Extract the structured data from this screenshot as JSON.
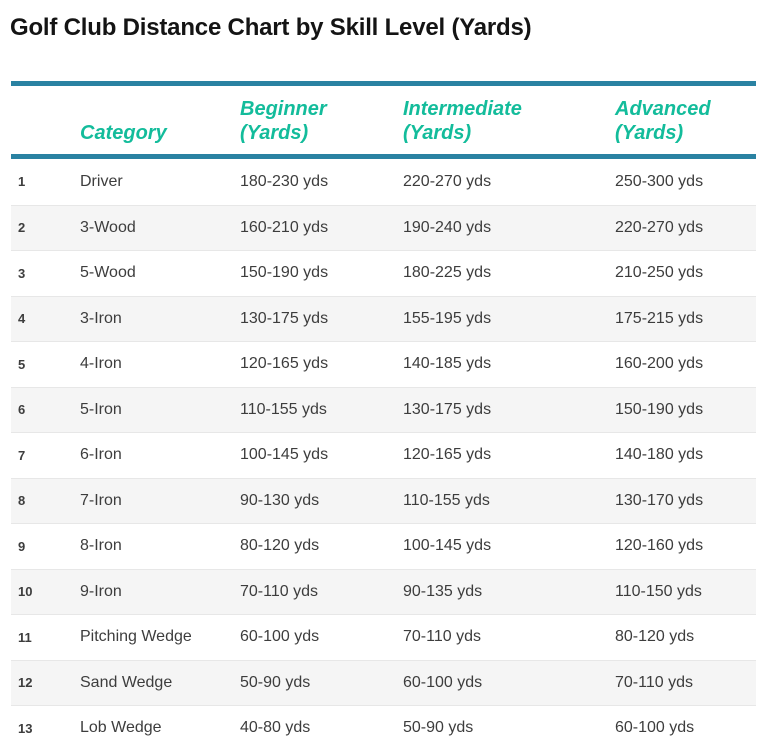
{
  "colors": {
    "accent_rule": "#2a82a2",
    "header_text": "#13bc9b",
    "title_text": "#141414",
    "cell_text": "#3d3d3d",
    "alt_row_bg": "#f5f5f5",
    "row_divider": "#e7e7e7"
  },
  "chart_data": {
    "type": "table",
    "title": "Golf Club Distance Chart by Skill Level (Yards)",
    "layout": {
      "alternating_rows": true,
      "header_rules": "top and bottom steel-blue bars",
      "row_count": 13
    },
    "columns": [
      {
        "label": "",
        "unit": ""
      },
      {
        "label": "Category",
        "unit": ""
      },
      {
        "label": "Beginner",
        "unit": "(Yards)"
      },
      {
        "label": "Intermediate",
        "unit": "(Yards)"
      },
      {
        "label": "Advanced",
        "unit": "(Yards)"
      }
    ],
    "rows": [
      {
        "index": "1",
        "category": "Driver",
        "beginner": "180-230 yds",
        "intermediate": "220-270 yds",
        "advanced": "250-300 yds"
      },
      {
        "index": "2",
        "category": "3-Wood",
        "beginner": "160-210 yds",
        "intermediate": "190-240 yds",
        "advanced": "220-270 yds"
      },
      {
        "index": "3",
        "category": "5-Wood",
        "beginner": "150-190 yds",
        "intermediate": "180-225 yds",
        "advanced": "210-250 yds"
      },
      {
        "index": "4",
        "category": "3-Iron",
        "beginner": "130-175 yds",
        "intermediate": "155-195 yds",
        "advanced": "175-215 yds"
      },
      {
        "index": "5",
        "category": "4-Iron",
        "beginner": "120-165 yds",
        "intermediate": "140-185 yds",
        "advanced": "160-200 yds"
      },
      {
        "index": "6",
        "category": "5-Iron",
        "beginner": "110-155 yds",
        "intermediate": "130-175 yds",
        "advanced": "150-190 yds"
      },
      {
        "index": "7",
        "category": "6-Iron",
        "beginner": "100-145 yds",
        "intermediate": "120-165 yds",
        "advanced": "140-180 yds"
      },
      {
        "index": "8",
        "category": "7-Iron",
        "beginner": "90-130 yds",
        "intermediate": "110-155 yds",
        "advanced": "130-170 yds"
      },
      {
        "index": "9",
        "category": "8-Iron",
        "beginner": "80-120 yds",
        "intermediate": "100-145 yds",
        "advanced": "120-160 yds"
      },
      {
        "index": "10",
        "category": "9-Iron",
        "beginner": "70-110 yds",
        "intermediate": "90-135 yds",
        "advanced": "110-150 yds"
      },
      {
        "index": "11",
        "category": "Pitching Wedge",
        "beginner": "60-100 yds",
        "intermediate": "70-110 yds",
        "advanced": "80-120 yds"
      },
      {
        "index": "12",
        "category": "Sand Wedge",
        "beginner": "50-90 yds",
        "intermediate": "60-100 yds",
        "advanced": "70-110 yds"
      },
      {
        "index": "13",
        "category": "Lob Wedge",
        "beginner": "40-80 yds",
        "intermediate": "50-90 yds",
        "advanced": "60-100 yds"
      }
    ]
  }
}
